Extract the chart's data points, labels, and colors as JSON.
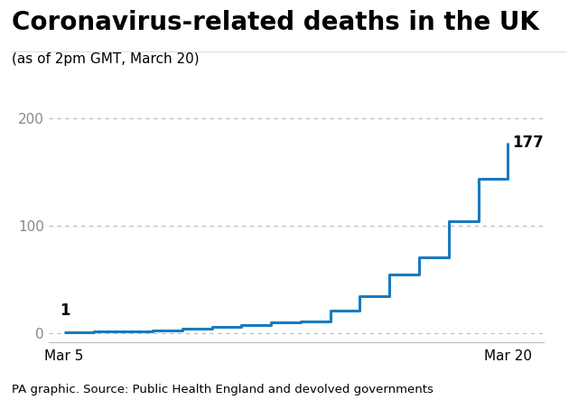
{
  "title": "Coronavirus-related deaths in the UK",
  "subtitle": "(as of 2pm GMT, March 20)",
  "source": "PA graphic. Source: Public Health England and devolved governments",
  "line_color": "#1a7abf",
  "line_width": 2.2,
  "background_color": "#ffffff",
  "dates": [
    5,
    6,
    7,
    8,
    9,
    10,
    11,
    12,
    13,
    14,
    15,
    16,
    17,
    18,
    19,
    20
  ],
  "values": [
    1,
    2,
    2,
    3,
    4,
    6,
    8,
    10,
    11,
    21,
    35,
    55,
    71,
    104,
    144,
    177
  ],
  "yticks": [
    0,
    100,
    200
  ],
  "ylim": [
    -8,
    215
  ],
  "xlim": [
    4.5,
    21.2
  ],
  "xtick_labels": [
    "Mar 5",
    "Mar 20"
  ],
  "xtick_positions": [
    5,
    20
  ],
  "first_label": "1",
  "last_label": "177",
  "title_fontsize": 20,
  "subtitle_fontsize": 11,
  "source_fontsize": 9.5,
  "tick_fontsize": 11,
  "annotation_fontsize": 12,
  "grid_color": "#bbbbbb",
  "grid_linestyle": "--",
  "axis_color": "#bbbbbb",
  "text_color": "#000000",
  "ytick_label_color": "#888888"
}
